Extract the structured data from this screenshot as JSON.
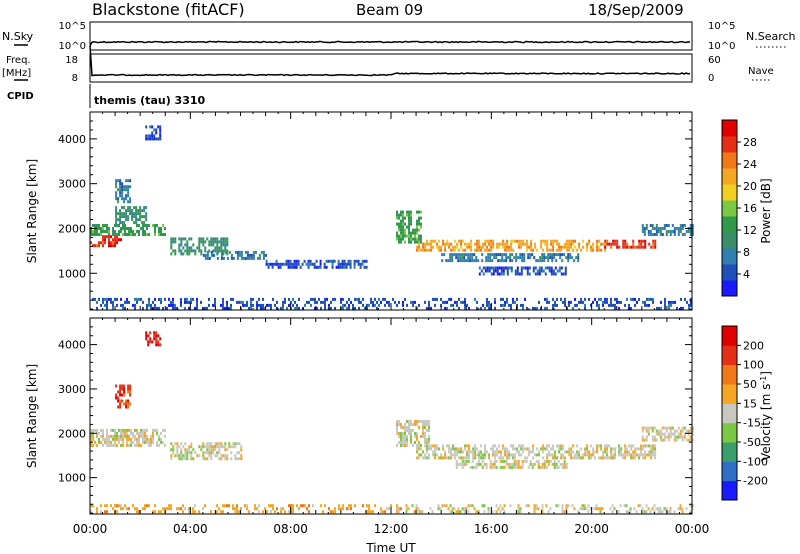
{
  "header": {
    "title": "Blackstone (fitACF)",
    "beam": "Beam 09",
    "date": "18/Sep/2009"
  },
  "top_panels": {
    "nsky_label": "N.Sky",
    "nsearch_label": "N.Search",
    "nsky_ticks": [
      "10^5",
      "10^0"
    ],
    "nsearch_ticks": [
      "10^5",
      "10^0"
    ],
    "freq_label": "Freq.",
    "freq_unit": "[MHz]",
    "freq_ticks": [
      "18",
      "8"
    ],
    "nave_label": "Nave",
    "nave_ticks": [
      "60",
      "0"
    ],
    "cpid_label": "CPID",
    "cpid_value": "themis (tau) 3310"
  },
  "chart_data": [
    {
      "type": "heatmap",
      "name": "power",
      "ylabel": "Slant Range [km]",
      "yticks": [
        "4000",
        "3000",
        "2000",
        "1000"
      ],
      "ylim": [
        180,
        4600
      ],
      "xlim": [
        0,
        24
      ],
      "colorbar": {
        "label": "Power [dB]",
        "ticks": [
          "28",
          "24",
          "20",
          "16",
          "12",
          "8",
          "4"
        ],
        "colors": [
          "#1a1aff",
          "#1f4fb8",
          "#2e7fb0",
          "#3a8f6a",
          "#2f9a4a",
          "#7ac843",
          "#f0d020",
          "#f5a623",
          "#f07818",
          "#e53018",
          "#e00000"
        ]
      },
      "regions": [
        {
          "x": [
            0.0,
            1.2
          ],
          "y": [
            1600,
            1850
          ],
          "level": 9
        },
        {
          "x": [
            0.0,
            3.0
          ],
          "y": [
            1850,
            2100
          ],
          "level": 4
        },
        {
          "x": [
            1.0,
            2.2
          ],
          "y": [
            2100,
            2500
          ],
          "level": 3
        },
        {
          "x": [
            1.0,
            1.6
          ],
          "y": [
            2600,
            3100
          ],
          "level": 2
        },
        {
          "x": [
            2.2,
            2.8
          ],
          "y": [
            4000,
            4300
          ],
          "level": 1
        },
        {
          "x": [
            3.2,
            5.5
          ],
          "y": [
            1450,
            1800
          ],
          "level": 3
        },
        {
          "x": [
            4.5,
            7.0
          ],
          "y": [
            1300,
            1500
          ],
          "level": 2
        },
        {
          "x": [
            7.0,
            11.0
          ],
          "y": [
            1150,
            1300
          ],
          "level": 1
        },
        {
          "x": [
            12.2,
            13.2
          ],
          "y": [
            1700,
            2400
          ],
          "level": 4
        },
        {
          "x": [
            13.0,
            20.5
          ],
          "y": [
            1500,
            1750
          ],
          "level": 7
        },
        {
          "x": [
            14.0,
            19.5
          ],
          "y": [
            1250,
            1450
          ],
          "level": 2
        },
        {
          "x": [
            15.5,
            19.0
          ],
          "y": [
            950,
            1150
          ],
          "level": 1
        },
        {
          "x": [
            20.5,
            22.5
          ],
          "y": [
            1550,
            1750
          ],
          "level": 9
        },
        {
          "x": [
            22.0,
            24.0
          ],
          "y": [
            1850,
            2100
          ],
          "level": 2
        },
        {
          "x": [
            0.0,
            24.0
          ],
          "y": [
            200,
            450
          ],
          "level": 1
        }
      ]
    },
    {
      "type": "heatmap",
      "name": "velocity",
      "ylabel": "Slant Range [km]",
      "yticks": [
        "4000",
        "3000",
        "2000",
        "1000"
      ],
      "ylim": [
        180,
        4600
      ],
      "xlim": [
        0,
        24
      ],
      "xlabel": "Time UT",
      "xticks": [
        "00:00",
        "04:00",
        "08:00",
        "12:00",
        "16:00",
        "20:00",
        "00:00"
      ],
      "colorbar": {
        "label": "Velocity [m s^-1]",
        "ticks": [
          "200",
          "100",
          "50",
          "15",
          "-15",
          "-50",
          "-100",
          "-200"
        ],
        "colors": [
          "#1a1aff",
          "#2e6fc8",
          "#3a9f6a",
          "#7ac843",
          "#c8c8c0",
          "#f5a623",
          "#f07818",
          "#e53018",
          "#e00000"
        ]
      },
      "regions": [
        {
          "x": [
            0.0,
            3.0
          ],
          "y": [
            1700,
            2100
          ],
          "level": 4
        },
        {
          "x": [
            1.0,
            1.6
          ],
          "y": [
            2600,
            3100
          ],
          "level": 7
        },
        {
          "x": [
            2.2,
            2.8
          ],
          "y": [
            4000,
            4300
          ],
          "level": 8
        },
        {
          "x": [
            3.2,
            6.0
          ],
          "y": [
            1400,
            1800
          ],
          "level": 4
        },
        {
          "x": [
            12.2,
            13.5
          ],
          "y": [
            1700,
            2300
          ],
          "level": 4
        },
        {
          "x": [
            13.0,
            22.5
          ],
          "y": [
            1450,
            1750
          ],
          "level": 4
        },
        {
          "x": [
            14.5,
            19.0
          ],
          "y": [
            1200,
            1400
          ],
          "level": 4
        },
        {
          "x": [
            22.0,
            24.0
          ],
          "y": [
            1850,
            2150
          ],
          "level": 4
        },
        {
          "x": [
            0.0,
            12.5
          ],
          "y": [
            200,
            400
          ],
          "level": 5
        },
        {
          "x": [
            12.5,
            24.0
          ],
          "y": [
            200,
            400
          ],
          "level": 4
        }
      ]
    }
  ]
}
